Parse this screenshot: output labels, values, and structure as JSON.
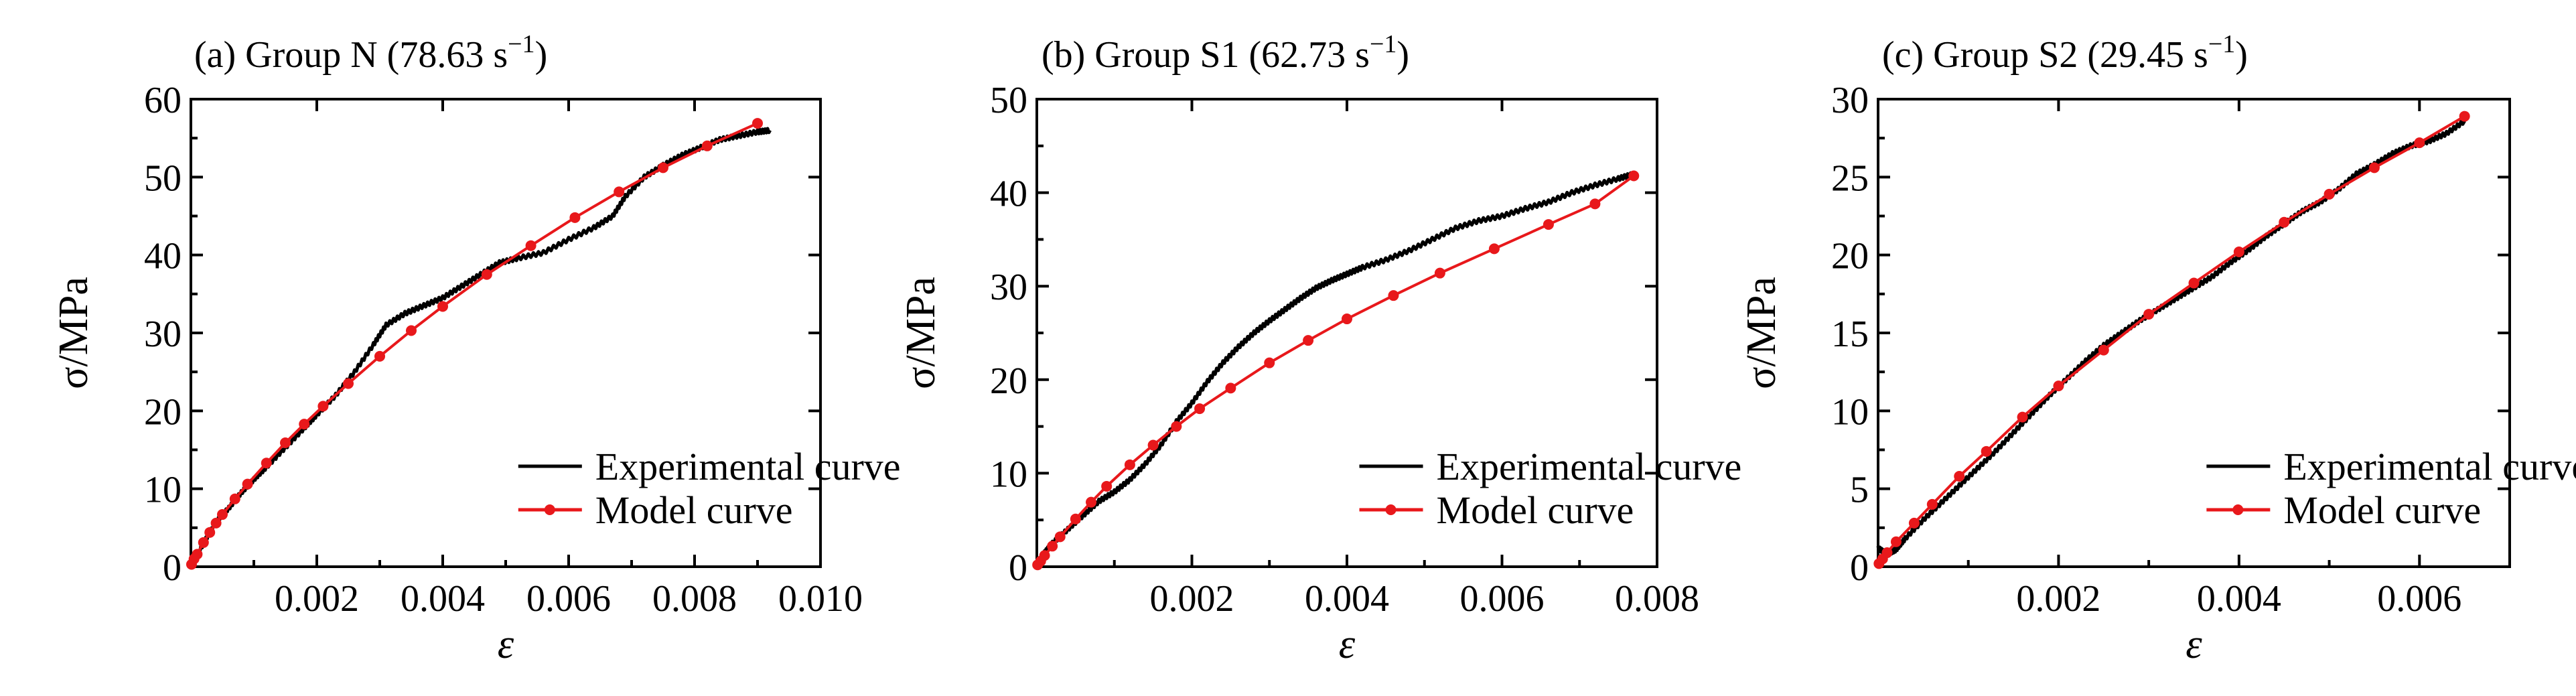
{
  "figure": {
    "colors": {
      "experimental": "#000000",
      "model": "#e8181b"
    }
  },
  "chart_data": [
    {
      "type": "line",
      "panel": "(a)",
      "title": "(a) Group N (78.63 s",
      "title_sup": "−1",
      "title_close": ")",
      "xlabel": "ε",
      "ylabel": "σ/MPa",
      "xlim": [
        0,
        0.01
      ],
      "ylim": [
        0,
        60
      ],
      "xticks": [
        0.002,
        0.004,
        0.006,
        0.008,
        0.01
      ],
      "xtick_labels": [
        "0.002",
        "0.004",
        "0.006",
        "0.008",
        "0.010"
      ],
      "yticks": [
        0,
        10,
        20,
        30,
        40,
        50,
        60
      ],
      "ytick_labels": [
        "0",
        "10",
        "20",
        "30",
        "40",
        "50",
        "60"
      ],
      "legend": {
        "position": "lower-right",
        "entries": [
          "Experimental curve",
          "Model curve"
        ]
      },
      "series": [
        {
          "name": "Experimental curve",
          "style": "line",
          "x": [
            0,
            0.0002,
            0.0004,
            0.0006,
            0.0008,
            0.001,
            0.0012,
            0.0015,
            0.0018,
            0.002,
            0.0023,
            0.0026,
            0.0029,
            0.0031,
            0.0034,
            0.0037,
            0.004,
            0.0043,
            0.0046,
            0.0049,
            0.0052,
            0.0056,
            0.006,
            0.0064,
            0.0067,
            0.0069,
            0.0072,
            0.0075,
            0.0078,
            0.0081,
            0.0084,
            0.0087,
            0.009,
            0.0092
          ],
          "y": [
            0,
            3,
            5.8,
            7.5,
            9.5,
            11.2,
            12.8,
            15.3,
            17.8,
            19.5,
            22,
            25,
            28.5,
            31,
            32.5,
            33.5,
            34.5,
            36,
            37.5,
            39,
            39.6,
            40.3,
            42,
            43.5,
            45,
            47.5,
            50,
            51.5,
            52.8,
            53.8,
            54.8,
            55.3,
            55.8,
            56
          ]
        },
        {
          "name": "Model curve",
          "style": "line-marker",
          "x": [
            1e-05,
            5e-05,
            0.0001,
            0.0002,
            0.0003,
            0.0004,
            0.0005,
            0.0007,
            0.0009,
            0.0012,
            0.0015,
            0.0018,
            0.0021,
            0.0025,
            0.003,
            0.0035,
            0.004,
            0.0047,
            0.0054,
            0.0061,
            0.0068,
            0.0075,
            0.0082,
            0.009
          ],
          "y": [
            0.3,
            1,
            1.6,
            3.1,
            4.4,
            5.6,
            6.7,
            8.7,
            10.6,
            13.3,
            15.9,
            18.3,
            20.6,
            23.5,
            27,
            30.3,
            33.4,
            37.5,
            41.2,
            44.8,
            48.1,
            51.2,
            54,
            56.9
          ]
        }
      ]
    },
    {
      "type": "line",
      "panel": "(b)",
      "title": "(b) Group S1 (62.73 s",
      "title_sup": "−1",
      "title_close": ")",
      "xlabel": "ε",
      "ylabel": "σ/MPa",
      "xlim": [
        0,
        0.008
      ],
      "ylim": [
        0,
        50
      ],
      "xticks": [
        0.002,
        0.004,
        0.006,
        0.008
      ],
      "xtick_labels": [
        "0.002",
        "0.004",
        "0.006",
        "0.008"
      ],
      "yticks": [
        0,
        10,
        20,
        30,
        40,
        50
      ],
      "ytick_labels": [
        "0",
        "10",
        "20",
        "30",
        "40",
        "50"
      ],
      "legend": {
        "position": "lower-right",
        "entries": [
          "Experimental curve",
          "Model curve"
        ]
      },
      "series": [
        {
          "name": "Experimental curve",
          "style": "line",
          "x": [
            0,
            0.0001,
            0.0002,
            0.0004,
            0.0006,
            0.0008,
            0.001,
            0.0012,
            0.0014,
            0.0016,
            0.0018,
            0.002,
            0.0022,
            0.0024,
            0.0026,
            0.0028,
            0.003,
            0.0032,
            0.0034,
            0.0036,
            0.0038,
            0.004,
            0.0042,
            0.0045,
            0.0048,
            0.0051,
            0.0054,
            0.0057,
            0.006,
            0.0063,
            0.0066,
            0.0069,
            0.0072,
            0.0075,
            0.0077
          ],
          "y": [
            0,
            1.5,
            2.5,
            4,
            5.5,
            7,
            8,
            9.3,
            11,
            13,
            15.5,
            17.5,
            19.8,
            21.8,
            23.5,
            25,
            26.3,
            27.5,
            28.7,
            29.8,
            30.6,
            31.3,
            32,
            32.8,
            33.8,
            35,
            36.2,
            37,
            37.5,
            38.3,
            39,
            40,
            40.8,
            41.5,
            42
          ]
        },
        {
          "name": "Model curve",
          "style": "line-marker",
          "x": [
            1e-05,
            5e-05,
            0.0001,
            0.0002,
            0.0003,
            0.0005,
            0.0007,
            0.0009,
            0.0012,
            0.0015,
            0.0018,
            0.0021,
            0.0025,
            0.003,
            0.0035,
            0.004,
            0.0046,
            0.0052,
            0.0059,
            0.0066,
            0.0072,
            0.0077
          ],
          "y": [
            0.2,
            0.6,
            1.2,
            2.2,
            3.2,
            5.1,
            6.9,
            8.6,
            10.9,
            13,
            15,
            16.9,
            19.1,
            21.8,
            24.2,
            26.5,
            29,
            31.4,
            34,
            36.6,
            38.8,
            41.8
          ]
        }
      ]
    },
    {
      "type": "line",
      "panel": "(c)",
      "title": "(c) Group S2 (29.45 s",
      "title_sup": "−1",
      "title_close": ")",
      "xlabel": "ε",
      "ylabel": "σ/MPa",
      "xlim": [
        0,
        0.007
      ],
      "ylim": [
        0,
        30
      ],
      "xticks": [
        0.002,
        0.004,
        0.006
      ],
      "xtick_labels": [
        "0.002",
        "0.004",
        "0.006"
      ],
      "yticks": [
        0,
        5,
        10,
        15,
        20,
        25,
        30
      ],
      "ytick_labels": [
        "0",
        "5",
        "10",
        "15",
        "20",
        "25",
        "30"
      ],
      "legend": {
        "position": "lower-right",
        "entries": [
          "Experimental curve",
          "Model curve"
        ]
      },
      "series": [
        {
          "name": "Experimental curve",
          "style": "line",
          "x": [
            0,
            0.0001,
            0.0002,
            0.0003,
            0.0005,
            0.0007,
            0.0009,
            0.0011,
            0.0013,
            0.0015,
            0.0017,
            0.0019,
            0.0021,
            0.0023,
            0.0025,
            0.0027,
            0.0029,
            0.0031,
            0.0033,
            0.0035,
            0.0037,
            0.0039,
            0.0041,
            0.0043,
            0.0045,
            0.0047,
            0.0049,
            0.0051,
            0.0053,
            0.0055,
            0.0057,
            0.0059,
            0.0061,
            0.0063,
            0.0065
          ],
          "y": [
            1.2,
            0.8,
            1.1,
            1.8,
            3,
            4.1,
            5.2,
            6.3,
            7.4,
            8.6,
            9.8,
            11,
            12.1,
            13.2,
            14.2,
            15,
            15.8,
            16.5,
            17.2,
            17.9,
            18.6,
            19.5,
            20.3,
            21.2,
            22,
            22.8,
            23.4,
            24.2,
            25.2,
            25.8,
            26.5,
            27,
            27.3,
            27.8,
            28.6
          ]
        },
        {
          "name": "Model curve",
          "style": "line-marker",
          "x": [
            1e-05,
            5e-05,
            0.0001,
            0.0002,
            0.0004,
            0.0006,
            0.0009,
            0.0012,
            0.0016,
            0.002,
            0.0025,
            0.003,
            0.0035,
            0.004,
            0.0045,
            0.005,
            0.0055,
            0.006,
            0.0065
          ],
          "y": [
            0.2,
            0.5,
            0.9,
            1.6,
            2.8,
            4,
            5.8,
            7.4,
            9.6,
            11.6,
            13.9,
            16.2,
            18.2,
            20.2,
            22.1,
            23.9,
            25.6,
            27.2,
            28.9
          ]
        }
      ]
    }
  ]
}
